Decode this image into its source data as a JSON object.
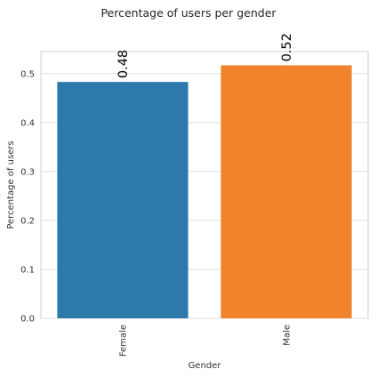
{
  "chart_data": {
    "type": "bar",
    "title": "Percentage of users per gender",
    "xlabel": "Gender",
    "ylabel": "Percentage of users",
    "categories": [
      "Female",
      "Male"
    ],
    "values": [
      0.483,
      0.517
    ],
    "data_labels": [
      "0.48",
      "0.52"
    ],
    "colors": [
      "#2e79ab",
      "#f0832b"
    ],
    "ylim": [
      0,
      0.545
    ],
    "yticks": [
      0.0,
      0.1,
      0.2,
      0.3,
      0.4,
      0.5
    ],
    "ytick_labels": [
      "0.0",
      "0.1",
      "0.2",
      "0.3",
      "0.4",
      "0.5"
    ],
    "grid": true,
    "legend": "none"
  }
}
